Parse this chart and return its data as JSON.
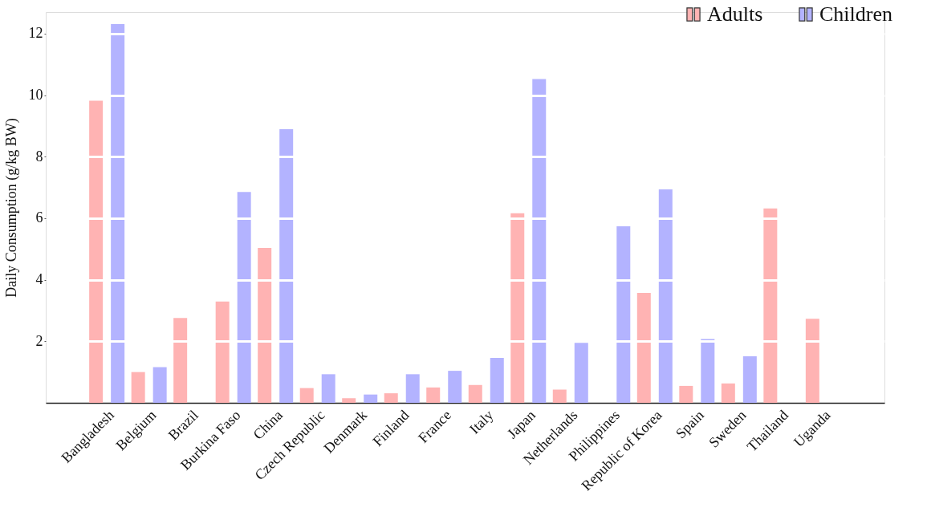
{
  "chart_data": {
    "type": "bar",
    "ylabel": "Daily Consumption (g/kg BW)",
    "categories": [
      "Bangladesh",
      "Belgium",
      "Brazil",
      "Burkina Faso",
      "China",
      "Czech Republic",
      "Denmark",
      "Finland",
      "France",
      "Italy",
      "Japan",
      "Netherlands",
      "Philippines",
      "Republic of Korea",
      "Spain",
      "Sweden",
      "Thailand",
      "Uganda"
    ],
    "series": [
      {
        "name": "Adults",
        "color": "#ffb3b3",
        "values": [
          9.82,
          1.0,
          2.76,
          3.29,
          5.03,
          0.48,
          0.15,
          0.31,
          0.5,
          0.58,
          6.16,
          0.43,
          null,
          3.57,
          0.55,
          0.63,
          6.32,
          2.73
        ]
      },
      {
        "name": "Children",
        "color": "#b3b3ff",
        "values": [
          12.31,
          1.16,
          null,
          6.85,
          8.89,
          0.93,
          0.27,
          0.93,
          1.04,
          1.46,
          10.52,
          1.95,
          5.74,
          6.94,
          2.07,
          1.51,
          null,
          null
        ]
      }
    ],
    "ylim": [
      0,
      12.7
    ],
    "yticks": [
      2,
      4,
      6,
      8,
      10,
      12
    ],
    "grid": "y",
    "legend": "top right"
  }
}
